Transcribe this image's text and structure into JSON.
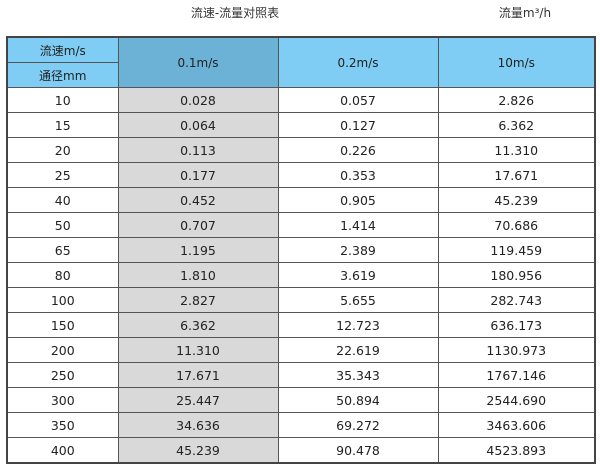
{
  "title": "流速-流量对照表",
  "unit_label": "流量m³/h",
  "header": {
    "velocity_label": "流速m/s",
    "diameter_label": "通径mm",
    "columns": [
      "0.1m/s",
      "0.2m/s",
      "10m/s"
    ]
  },
  "colors": {
    "header": "#7fcdf4",
    "header_highlight": "#6cb1d6",
    "highlight_column": "#d9d9d9"
  },
  "rows": [
    [
      "10",
      "0.028",
      "0.057",
      "2.826"
    ],
    [
      "15",
      "0.064",
      "0.127",
      "6.362"
    ],
    [
      "20",
      "0.113",
      "0.226",
      "11.310"
    ],
    [
      "25",
      "0.177",
      "0.353",
      "17.671"
    ],
    [
      "40",
      "0.452",
      "0.905",
      "45.239"
    ],
    [
      "50",
      "0.707",
      "1.414",
      "70.686"
    ],
    [
      "65",
      "1.195",
      "2.389",
      "119.459"
    ],
    [
      "80",
      "1.810",
      "3.619",
      "180.956"
    ],
    [
      "100",
      "2.827",
      "5.655",
      "282.743"
    ],
    [
      "150",
      "6.362",
      "12.723",
      "636.173"
    ],
    [
      "200",
      "11.310",
      "22.619",
      "1130.973"
    ],
    [
      "250",
      "17.671",
      "35.343",
      "1767.146"
    ],
    [
      "300",
      "25.447",
      "50.894",
      "2544.690"
    ],
    [
      "350",
      "34.636",
      "69.272",
      "3463.606"
    ],
    [
      "400",
      "45.239",
      "90.478",
      "4523.893"
    ]
  ]
}
